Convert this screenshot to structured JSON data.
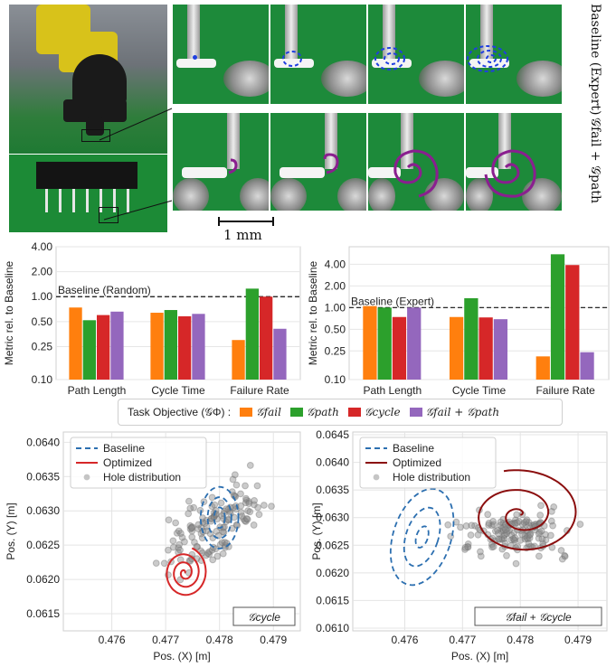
{
  "photos": {
    "row_labels": [
      "Baseline (Expert)",
      "G_fail + G_path"
    ],
    "row_label_display": [
      "Baseline (Expert)",
      "𝒢fail + 𝒢path"
    ],
    "scale_bar": "1 mm",
    "colors": {
      "baseline_path": "#1f3fe0",
      "spiral_path": "#8a1f8f"
    }
  },
  "bar_legend": {
    "title": "Task Objective (𝒢Φ) :",
    "items": [
      {
        "label": "𝒢fail",
        "color": "#ff7f0e"
      },
      {
        "label": "𝒢path",
        "color": "#2ca02c"
      },
      {
        "label": "𝒢cycle",
        "color": "#d62728"
      },
      {
        "label": "𝒢fail + 𝒢path",
        "color": "#9467bd"
      }
    ]
  },
  "chart_data": [
    {
      "type": "bar",
      "ylabel": "Metric rel. to Baseline",
      "yscale": "log",
      "ylim": [
        0.1,
        4.0
      ],
      "yticks": [
        "0.10",
        "0.25",
        "0.50",
        "1.00",
        "2.00",
        "4.00"
      ],
      "reference_line": {
        "value": 1.0,
        "label": "Baseline (Random)"
      },
      "categories": [
        "Path Length",
        "Cycle Time",
        "Failure Rate"
      ],
      "series": [
        {
          "name": "𝒢fail",
          "color": "#ff7f0e",
          "values": [
            0.74,
            0.64,
            0.3
          ]
        },
        {
          "name": "𝒢path",
          "color": "#2ca02c",
          "values": [
            0.52,
            0.69,
            1.25
          ]
        },
        {
          "name": "𝒢cycle",
          "color": "#d62728",
          "values": [
            0.6,
            0.58,
            1.0
          ]
        },
        {
          "name": "𝒢fail + 𝒢path",
          "color": "#9467bd",
          "values": [
            0.66,
            0.62,
            0.41
          ]
        }
      ]
    },
    {
      "type": "bar",
      "ylabel": "Metric rel. to Baseline",
      "yscale": "log",
      "ylim": [
        0.1,
        7.0
      ],
      "yticks": [
        "0.10",
        "0.25",
        "0.50",
        "1.00",
        "2.00",
        "4.00"
      ],
      "reference_line": {
        "value": 1.0,
        "label": "Baseline (Expert)"
      },
      "categories": [
        "Path Length",
        "Cycle Time",
        "Failure Rate"
      ],
      "series": [
        {
          "name": "𝒢fail",
          "color": "#ff7f0e",
          "values": [
            1.05,
            0.74,
            0.21
          ]
        },
        {
          "name": "𝒢path",
          "color": "#2ca02c",
          "values": [
            1.0,
            1.35,
            5.5
          ]
        },
        {
          "name": "𝒢cycle",
          "color": "#d62728",
          "values": [
            0.74,
            0.73,
            3.9
          ]
        },
        {
          "name": "𝒢fail + 𝒢path",
          "color": "#9467bd",
          "values": [
            1.0,
            0.69,
            0.24
          ]
        }
      ]
    },
    {
      "type": "scatter",
      "xlabel": "Pos. (X) [m]",
      "ylabel": "Pos. (Y) [m]",
      "xlim": [
        0.4751,
        0.4795
      ],
      "ylim": [
        0.06125,
        0.06415
      ],
      "xticks": [
        "0.476",
        "0.477",
        "0.478",
        "0.479"
      ],
      "yticks": [
        "0.0615",
        "0.0620",
        "0.0625",
        "0.0630",
        "0.0635",
        "0.0640"
      ],
      "grid": true,
      "legend": [
        "Baseline",
        "Optimized",
        "Hole distribution"
      ],
      "legend_position": "top-left",
      "objective_label": "𝒢cycle",
      "baseline_center": [
        0.478,
        0.0629
      ],
      "optimized_center": [
        0.47735,
        0.0621
      ]
    },
    {
      "type": "scatter",
      "xlabel": "Pos. (X) [m]",
      "ylabel": "Pos. (Y) [m]",
      "xlim": [
        0.4751,
        0.4795
      ],
      "ylim": [
        0.06095,
        0.06455
      ],
      "xticks": [
        "0.476",
        "0.477",
        "0.478",
        "0.479"
      ],
      "yticks": [
        "0.0610",
        "0.0615",
        "0.0620",
        "0.0625",
        "0.0630",
        "0.0635",
        "0.0640",
        "0.0645"
      ],
      "grid": true,
      "legend": [
        "Baseline",
        "Optimized",
        "Hole distribution"
      ],
      "legend_position": "top-left",
      "objective_label": "𝒢fail + 𝒢cycle",
      "baseline_center": [
        0.4763,
        0.06265
      ],
      "optimized_center": [
        0.478,
        0.06305
      ]
    }
  ]
}
